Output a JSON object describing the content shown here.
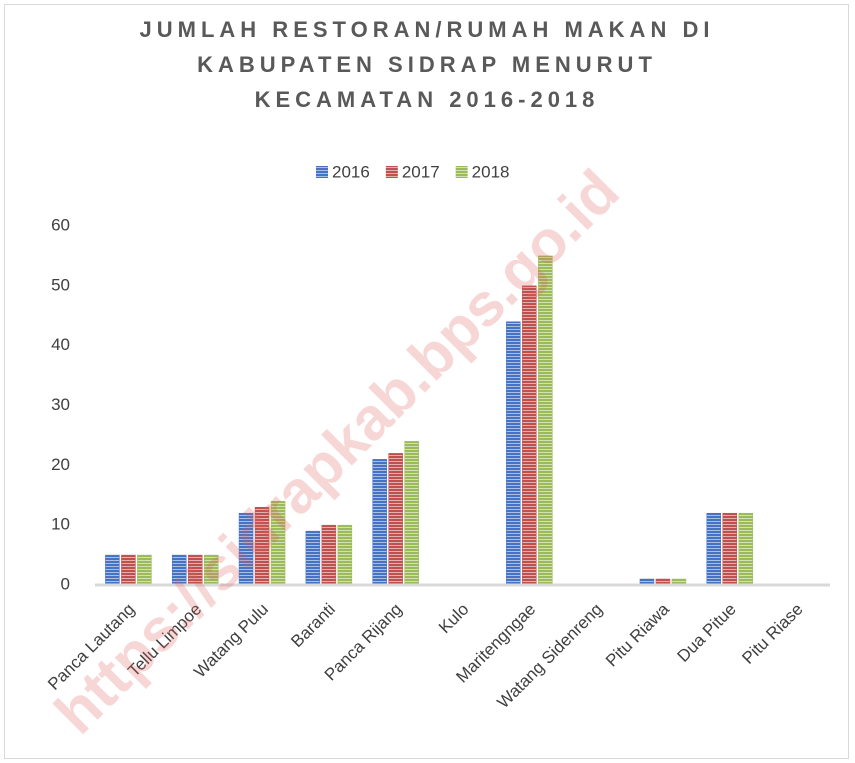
{
  "chart_data": {
    "type": "bar",
    "title": "JUMLAH RESTORAN/RUMAH MAKAN DI KABUPATEN SIDRAP MENURUT KECAMATAN 2016-2018",
    "categories": [
      "Panca Lautang",
      "Tellu Limpoe",
      "Watang Pulu",
      "Baranti",
      "Panca Rijang",
      "Kulo",
      "Maritengngae",
      "Watang Sidenreng",
      "Pitu Riawa",
      "Dua Pitue",
      "Pitu Riase"
    ],
    "series": [
      {
        "name": "2016",
        "color": "#4472c4",
        "values": [
          5,
          5,
          12,
          9,
          21,
          0,
          44,
          0,
          1,
          12,
          0
        ]
      },
      {
        "name": "2017",
        "color": "#c0504d",
        "values": [
          5,
          5,
          13,
          10,
          22,
          0,
          50,
          0,
          1,
          12,
          0
        ]
      },
      {
        "name": "2018",
        "color": "#9bbb59",
        "values": [
          5,
          5,
          14,
          10,
          24,
          0,
          55,
          0,
          1,
          12,
          0
        ]
      }
    ],
    "ylim": [
      0,
      60
    ],
    "yticks": [
      0,
      10,
      20,
      30,
      40,
      50,
      60
    ],
    "grid": false,
    "legend": "top",
    "watermark": "https://sidrapkab.bps.go.id"
  }
}
